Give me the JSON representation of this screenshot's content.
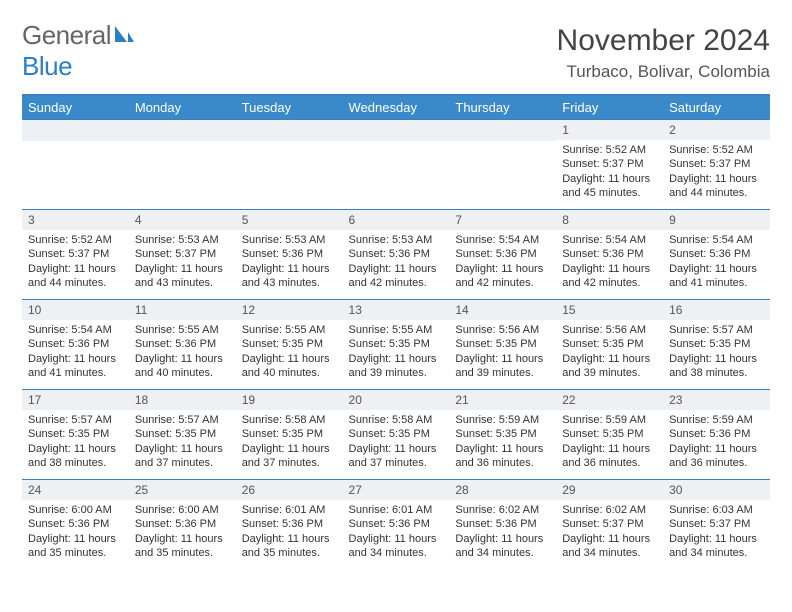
{
  "logo": {
    "line1": "General",
    "line2": "Blue"
  },
  "title": "November 2024",
  "location": "Turbaco, Bolivar, Colombia",
  "colors": {
    "header_blue": "#3a8ac9",
    "border_blue": "#3a7fbf",
    "daynum_bg": "#eef1f3",
    "logo_gray": "#666666",
    "logo_blue": "#2b7fc3"
  },
  "weekdays": [
    "Sunday",
    "Monday",
    "Tuesday",
    "Wednesday",
    "Thursday",
    "Friday",
    "Saturday"
  ],
  "blanks_leading": 5,
  "days": [
    {
      "n": "1",
      "sr": "5:52 AM",
      "ss": "5:37 PM",
      "dl": "11 hours and 45 minutes."
    },
    {
      "n": "2",
      "sr": "5:52 AM",
      "ss": "5:37 PM",
      "dl": "11 hours and 44 minutes."
    },
    {
      "n": "3",
      "sr": "5:52 AM",
      "ss": "5:37 PM",
      "dl": "11 hours and 44 minutes."
    },
    {
      "n": "4",
      "sr": "5:53 AM",
      "ss": "5:37 PM",
      "dl": "11 hours and 43 minutes."
    },
    {
      "n": "5",
      "sr": "5:53 AM",
      "ss": "5:36 PM",
      "dl": "11 hours and 43 minutes."
    },
    {
      "n": "6",
      "sr": "5:53 AM",
      "ss": "5:36 PM",
      "dl": "11 hours and 42 minutes."
    },
    {
      "n": "7",
      "sr": "5:54 AM",
      "ss": "5:36 PM",
      "dl": "11 hours and 42 minutes."
    },
    {
      "n": "8",
      "sr": "5:54 AM",
      "ss": "5:36 PM",
      "dl": "11 hours and 42 minutes."
    },
    {
      "n": "9",
      "sr": "5:54 AM",
      "ss": "5:36 PM",
      "dl": "11 hours and 41 minutes."
    },
    {
      "n": "10",
      "sr": "5:54 AM",
      "ss": "5:36 PM",
      "dl": "11 hours and 41 minutes."
    },
    {
      "n": "11",
      "sr": "5:55 AM",
      "ss": "5:36 PM",
      "dl": "11 hours and 40 minutes."
    },
    {
      "n": "12",
      "sr": "5:55 AM",
      "ss": "5:35 PM",
      "dl": "11 hours and 40 minutes."
    },
    {
      "n": "13",
      "sr": "5:55 AM",
      "ss": "5:35 PM",
      "dl": "11 hours and 39 minutes."
    },
    {
      "n": "14",
      "sr": "5:56 AM",
      "ss": "5:35 PM",
      "dl": "11 hours and 39 minutes."
    },
    {
      "n": "15",
      "sr": "5:56 AM",
      "ss": "5:35 PM",
      "dl": "11 hours and 39 minutes."
    },
    {
      "n": "16",
      "sr": "5:57 AM",
      "ss": "5:35 PM",
      "dl": "11 hours and 38 minutes."
    },
    {
      "n": "17",
      "sr": "5:57 AM",
      "ss": "5:35 PM",
      "dl": "11 hours and 38 minutes."
    },
    {
      "n": "18",
      "sr": "5:57 AM",
      "ss": "5:35 PM",
      "dl": "11 hours and 37 minutes."
    },
    {
      "n": "19",
      "sr": "5:58 AM",
      "ss": "5:35 PM",
      "dl": "11 hours and 37 minutes."
    },
    {
      "n": "20",
      "sr": "5:58 AM",
      "ss": "5:35 PM",
      "dl": "11 hours and 37 minutes."
    },
    {
      "n": "21",
      "sr": "5:59 AM",
      "ss": "5:35 PM",
      "dl": "11 hours and 36 minutes."
    },
    {
      "n": "22",
      "sr": "5:59 AM",
      "ss": "5:35 PM",
      "dl": "11 hours and 36 minutes."
    },
    {
      "n": "23",
      "sr": "5:59 AM",
      "ss": "5:36 PM",
      "dl": "11 hours and 36 minutes."
    },
    {
      "n": "24",
      "sr": "6:00 AM",
      "ss": "5:36 PM",
      "dl": "11 hours and 35 minutes."
    },
    {
      "n": "25",
      "sr": "6:00 AM",
      "ss": "5:36 PM",
      "dl": "11 hours and 35 minutes."
    },
    {
      "n": "26",
      "sr": "6:01 AM",
      "ss": "5:36 PM",
      "dl": "11 hours and 35 minutes."
    },
    {
      "n": "27",
      "sr": "6:01 AM",
      "ss": "5:36 PM",
      "dl": "11 hours and 34 minutes."
    },
    {
      "n": "28",
      "sr": "6:02 AM",
      "ss": "5:36 PM",
      "dl": "11 hours and 34 minutes."
    },
    {
      "n": "29",
      "sr": "6:02 AM",
      "ss": "5:37 PM",
      "dl": "11 hours and 34 minutes."
    },
    {
      "n": "30",
      "sr": "6:03 AM",
      "ss": "5:37 PM",
      "dl": "11 hours and 34 minutes."
    }
  ],
  "labels": {
    "sunrise": "Sunrise: ",
    "sunset": "Sunset: ",
    "daylight": "Daylight: "
  }
}
